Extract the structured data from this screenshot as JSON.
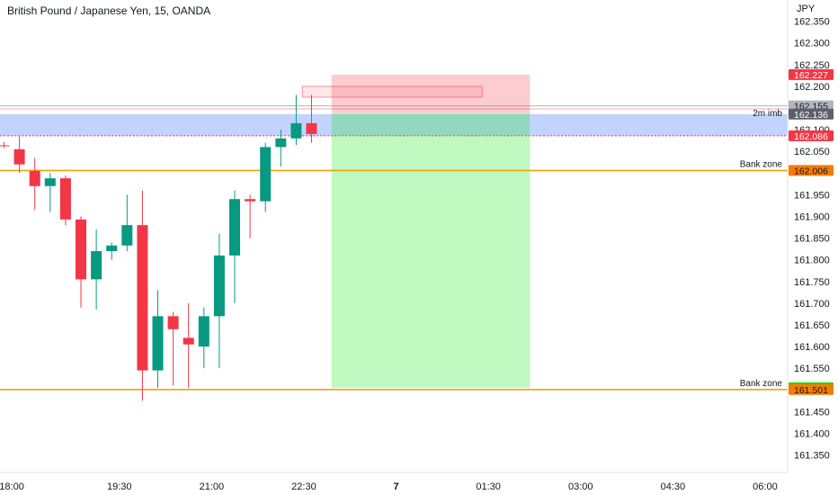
{
  "header": {
    "title": "British Pound / Japanese Yen, 15, OANDA",
    "currency": "JPY"
  },
  "chart_data": {
    "type": "candlestick",
    "symbol": "British Pound / Japanese Yen",
    "interval": "15",
    "source": "OANDA",
    "y_unit": "JPY",
    "ylim": [
      161.32,
      162.37
    ],
    "y_ticks": [
      "162.350",
      "162.300",
      "162.250",
      "162.200",
      "162.100",
      "162.050",
      "161.950",
      "161.900",
      "161.850",
      "161.800",
      "161.750",
      "161.700",
      "161.650",
      "161.600",
      "161.550",
      "161.450",
      "161.400",
      "161.350"
    ],
    "x_ticks": [
      "18:00",
      "19:30",
      "21:00",
      "22:30",
      "7",
      "01:30",
      "03:00",
      "04:30",
      "06:00"
    ],
    "x_bar_of_tick": [
      0.5,
      7.5,
      13.5,
      19.5,
      25.5,
      31.5,
      37.5,
      43.5,
      49.5
    ],
    "candles": [
      {
        "o": 162.064,
        "h": 162.072,
        "l": 162.058,
        "c": 162.062
      },
      {
        "o": 162.055,
        "h": 162.085,
        "l": 162.0,
        "c": 162.02
      },
      {
        "o": 162.005,
        "h": 162.035,
        "l": 161.915,
        "c": 161.97
      },
      {
        "o": 161.97,
        "h": 162.0,
        "l": 161.91,
        "c": 161.988
      },
      {
        "o": 161.988,
        "h": 161.995,
        "l": 161.88,
        "c": 161.893
      },
      {
        "o": 161.893,
        "h": 161.9,
        "l": 161.69,
        "c": 161.755
      },
      {
        "o": 161.755,
        "h": 161.87,
        "l": 161.685,
        "c": 161.82
      },
      {
        "o": 161.82,
        "h": 161.84,
        "l": 161.8,
        "c": 161.833
      },
      {
        "o": 161.833,
        "h": 161.95,
        "l": 161.82,
        "c": 161.88
      },
      {
        "o": 161.88,
        "h": 161.96,
        "l": 161.475,
        "c": 161.545
      },
      {
        "o": 161.545,
        "h": 161.73,
        "l": 161.505,
        "c": 161.67
      },
      {
        "o": 161.67,
        "h": 161.68,
        "l": 161.51,
        "c": 161.64
      },
      {
        "o": 161.62,
        "h": 161.7,
        "l": 161.505,
        "c": 161.605
      },
      {
        "o": 161.6,
        "h": 161.69,
        "l": 161.55,
        "c": 161.67
      },
      {
        "o": 161.67,
        "h": 161.86,
        "l": 161.55,
        "c": 161.81
      },
      {
        "o": 161.81,
        "h": 161.96,
        "l": 161.7,
        "c": 161.94
      },
      {
        "o": 161.94,
        "h": 161.95,
        "l": 161.85,
        "c": 161.935
      },
      {
        "o": 161.935,
        "h": 162.07,
        "l": 161.91,
        "c": 162.06
      },
      {
        "o": 162.06,
        "h": 162.1,
        "l": 162.015,
        "c": 162.08
      },
      {
        "o": 162.08,
        "h": 162.18,
        "l": 162.065,
        "c": 162.115
      },
      {
        "o": 162.115,
        "h": 162.18,
        "l": 162.07,
        "c": 162.09
      }
    ],
    "levels": [
      {
        "name": "Bank zone",
        "value": 162.006,
        "color": "#f2a10c"
      },
      {
        "name": "Bank zone",
        "value": 161.501,
        "color": "#f2a10c"
      }
    ],
    "imbalance_zone": {
      "name": "2m imb",
      "top": 162.136,
      "bottom": 162.086,
      "color": "#2962ff"
    },
    "price_tags": [
      {
        "value": "162.227",
        "bg": "#f23645",
        "fg": "#ffffff"
      },
      {
        "value": "162.155",
        "bg": "#b2b5be",
        "fg": "#131722"
      },
      {
        "value": "162.136",
        "bg": "#5d606b",
        "fg": "#ffffff"
      },
      {
        "value": "162.086",
        "bg": "#f23645",
        "fg": "#ffffff"
      },
      {
        "value": "162.006",
        "bg": "#f57c00",
        "fg": "#131722"
      },
      {
        "value": "161.505",
        "bg": "#00e600",
        "fg": "#131722"
      },
      {
        "value": "161.501",
        "bg": "#f57c00",
        "fg": "#131722"
      }
    ],
    "position": {
      "type": "short",
      "entry": 162.138,
      "stop": 162.227,
      "target": 161.505,
      "start_bar": 21.3,
      "end_bar": 34.2
    },
    "colors": {
      "up": "#089981",
      "down": "#f23645"
    }
  }
}
